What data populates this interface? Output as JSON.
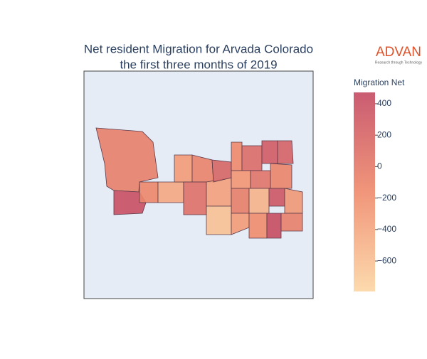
{
  "chart_data": {
    "type": "choropleth",
    "title_lines": [
      "Net resident Migration for Arvada Colorado",
      "the first three months of 2019"
    ],
    "values": [
      -60,
      420,
      -120,
      -420,
      -300,
      -80,
      100,
      -350,
      200,
      -150,
      150,
      300,
      220,
      -250,
      60,
      -100,
      -40,
      -500,
      350,
      -280,
      -620,
      -300,
      -180,
      440,
      -50
    ],
    "colorscale": [
      "#fcd6a4",
      "#ef8a6b",
      "#c44a62"
    ],
    "colorbar_title": "Migration Net",
    "zlim": [
      -794,
      472
    ],
    "zticks": [
      400,
      200,
      0,
      {
        "value": -200,
        "label": "−200"
      },
      {
        "value": -400,
        "label": "−400"
      },
      {
        "value": -600,
        "label": "−600"
      }
    ],
    "logo": {
      "name": "ADVAN",
      "tagline": "Research through Technology"
    }
  }
}
